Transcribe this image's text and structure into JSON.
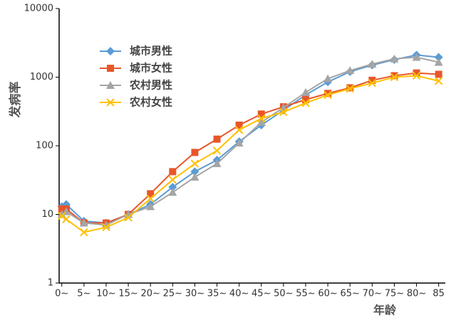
{
  "chart_data": {
    "type": "line",
    "y_label": "发病率",
    "x_label": "年龄",
    "x": [
      0,
      1,
      5,
      10,
      15,
      20,
      25,
      30,
      35,
      40,
      45,
      50,
      55,
      60,
      65,
      70,
      75,
      80,
      85
    ],
    "xlim": [
      -0.6,
      86.5
    ],
    "xticks": [
      {
        "value": 0,
        "label": "0~"
      },
      {
        "value": 5,
        "label": "5~"
      },
      {
        "value": 10,
        "label": "10~"
      },
      {
        "value": 15,
        "label": "15~"
      },
      {
        "value": 20,
        "label": "20~"
      },
      {
        "value": 25,
        "label": "25~"
      },
      {
        "value": 30,
        "label": "30~"
      },
      {
        "value": 35,
        "label": "35~"
      },
      {
        "value": 40,
        "label": "40~"
      },
      {
        "value": 45,
        "label": "45~"
      },
      {
        "value": 50,
        "label": "50~"
      },
      {
        "value": 55,
        "label": "55~"
      },
      {
        "value": 60,
        "label": "60~"
      },
      {
        "value": 65,
        "label": "65~"
      },
      {
        "value": 70,
        "label": "70~"
      },
      {
        "value": 75,
        "label": "75~"
      },
      {
        "value": 80,
        "label": "80~"
      },
      {
        "value": 85,
        "label": "85"
      }
    ],
    "ylim": [
      1,
      10000
    ],
    "yticks": [
      1,
      10,
      100,
      1000,
      10000
    ],
    "log_y": true,
    "grid": false,
    "legend": "upper left",
    "series": [
      {
        "name": "城市男性",
        "color": "#5b9bd5",
        "marker": "diamond",
        "values": [
          13,
          14,
          8,
          7.5,
          10,
          14,
          25,
          42,
          62,
          115,
          200,
          330,
          550,
          850,
          1200,
          1500,
          1800,
          2100,
          1950
        ]
      },
      {
        "name": "城市女性",
        "color": "#e8562a",
        "marker": "square",
        "values": [
          12,
          12,
          7.5,
          7.5,
          10,
          20,
          42,
          80,
          125,
          200,
          290,
          370,
          470,
          580,
          700,
          900,
          1050,
          1150,
          1100
        ]
      },
      {
        "name": "农村男性",
        "color": "#a5a5a5",
        "marker": "triangle",
        "values": [
          10,
          11,
          7.5,
          7,
          10,
          13,
          21,
          35,
          55,
          110,
          220,
          360,
          600,
          950,
          1250,
          1550,
          1850,
          1950,
          1650
        ]
      },
      {
        "name": "农村女性",
        "color": "#ffc000",
        "marker": "x",
        "values": [
          9.5,
          8.5,
          5.5,
          6.5,
          9,
          17,
          32,
          55,
          85,
          170,
          250,
          310,
          420,
          550,
          680,
          820,
          1000,
          1050,
          880
        ]
      }
    ]
  }
}
